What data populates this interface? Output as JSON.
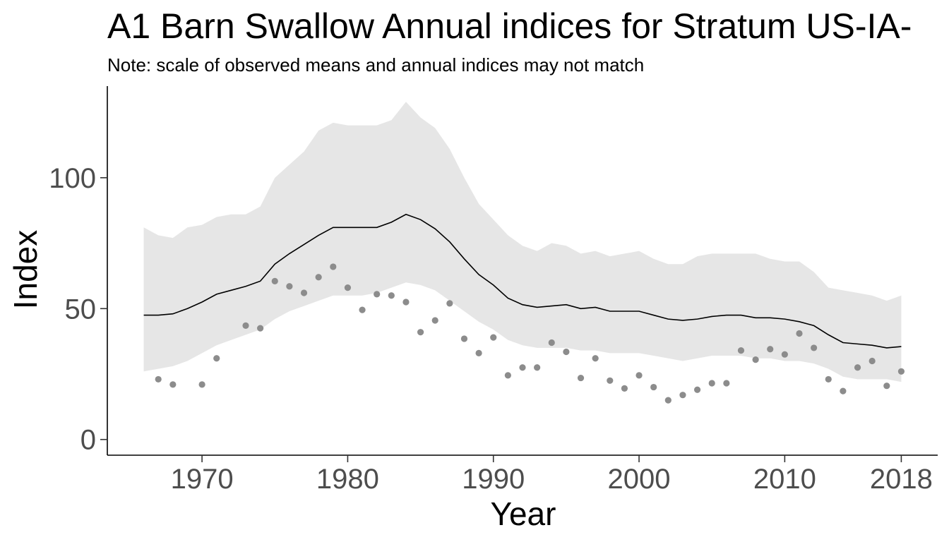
{
  "chart_data": {
    "type": "line",
    "title": "A1 Barn Swallow Annual indices for Stratum US-IA-",
    "subtitle": "Note: scale of observed means and annual indices may not match",
    "xlabel": "Year",
    "ylabel": "Index",
    "xlim": [
      1963.5,
      2020.5
    ],
    "ylim": [
      -6,
      135
    ],
    "x_ticks": [
      1970,
      1980,
      1990,
      2000,
      2010,
      2018
    ],
    "y_ticks": [
      0,
      50,
      100
    ],
    "grid": false,
    "legend": "none",
    "colors": {
      "ribbon": "#e6e6e6",
      "line": "#000000",
      "points": "#8c8c8c"
    },
    "series": [
      {
        "type": "ribbon",
        "x": [
          1966,
          1967,
          1968,
          1969,
          1970,
          1971,
          1972,
          1973,
          1974,
          1975,
          1976,
          1977,
          1978,
          1979,
          1980,
          1981,
          1982,
          1983,
          1984,
          1985,
          1986,
          1987,
          1988,
          1989,
          1990,
          1991,
          1992,
          1993,
          1994,
          1995,
          1996,
          1997,
          1998,
          1999,
          2000,
          2001,
          2002,
          2003,
          2004,
          2005,
          2006,
          2007,
          2008,
          2009,
          2010,
          2011,
          2012,
          2013,
          2014,
          2015,
          2016,
          2017,
          2018
        ],
        "lower": [
          26,
          27,
          28,
          30,
          33,
          36,
          38,
          40,
          42,
          46,
          49,
          51,
          53,
          55,
          55,
          55,
          56,
          58,
          60,
          59,
          57,
          53,
          49,
          45,
          42,
          38,
          36,
          35,
          35,
          35,
          34,
          34,
          33,
          33,
          33,
          32,
          31,
          30,
          31,
          32,
          32,
          32,
          31,
          31,
          30,
          30,
          29,
          27,
          24,
          23,
          23,
          23,
          22
        ],
        "upper": [
          81,
          78,
          77,
          81,
          82,
          85,
          86,
          86,
          89,
          100,
          105,
          110,
          118,
          121,
          120,
          120,
          120,
          122,
          129,
          123,
          119,
          111,
          100,
          90,
          84,
          78,
          74,
          72,
          75,
          74,
          71,
          72,
          70,
          71,
          72,
          69,
          67,
          67,
          70,
          71,
          71,
          71,
          71,
          69,
          68,
          68,
          64,
          58,
          57,
          56,
          55,
          53,
          55
        ]
      },
      {
        "type": "line",
        "x": [
          1966,
          1967,
          1968,
          1969,
          1970,
          1971,
          1972,
          1973,
          1974,
          1975,
          1976,
          1977,
          1978,
          1979,
          1980,
          1981,
          1982,
          1983,
          1984,
          1985,
          1986,
          1987,
          1988,
          1989,
          1990,
          1991,
          1992,
          1993,
          1994,
          1995,
          1996,
          1997,
          1998,
          1999,
          2000,
          2001,
          2002,
          2003,
          2004,
          2005,
          2006,
          2007,
          2008,
          2009,
          2010,
          2011,
          2012,
          2013,
          2014,
          2015,
          2016,
          2017,
          2018
        ],
        "values": [
          47.5,
          47.5,
          48,
          50,
          52.5,
          55.5,
          57,
          58.5,
          60.5,
          67,
          71,
          74.5,
          78,
          81,
          81,
          81,
          81,
          83,
          86,
          84,
          80.5,
          75.5,
          69,
          63,
          59,
          54,
          51.5,
          50.5,
          51,
          51.5,
          50,
          50.5,
          49,
          49,
          49,
          47.5,
          46,
          45.5,
          46,
          47,
          47.5,
          47.5,
          46.5,
          46.5,
          46,
          45,
          43.5,
          40,
          37,
          36.5,
          36,
          35,
          35.5
        ]
      },
      {
        "type": "scatter",
        "x": [
          1967,
          1968,
          1970,
          1971,
          1973,
          1974,
          1975,
          1976,
          1977,
          1978,
          1979,
          1980,
          1981,
          1982,
          1983,
          1984,
          1985,
          1986,
          1987,
          1988,
          1989,
          1990,
          1991,
          1992,
          1993,
          1994,
          1995,
          1996,
          1997,
          1998,
          1999,
          2000,
          2001,
          2002,
          2003,
          2004,
          2005,
          2006,
          2007,
          2008,
          2009,
          2010,
          2011,
          2012,
          2013,
          2014,
          2015,
          2016,
          2017,
          2018
        ],
        "values": [
          23,
          21,
          21,
          31,
          43.5,
          42.5,
          60.5,
          58.5,
          56,
          62,
          66,
          58,
          49.5,
          55.5,
          55,
          52.5,
          41,
          45.5,
          52,
          38.5,
          33,
          39,
          24.5,
          27.5,
          27.5,
          37,
          33.5,
          23.5,
          31,
          22.5,
          19.5,
          24.5,
          20,
          15,
          17,
          19,
          21.5,
          21.5,
          34,
          30.5,
          34.5,
          32.5,
          40.5,
          35,
          23,
          18.5,
          27.5,
          30,
          20.5,
          26
        ]
      }
    ]
  }
}
